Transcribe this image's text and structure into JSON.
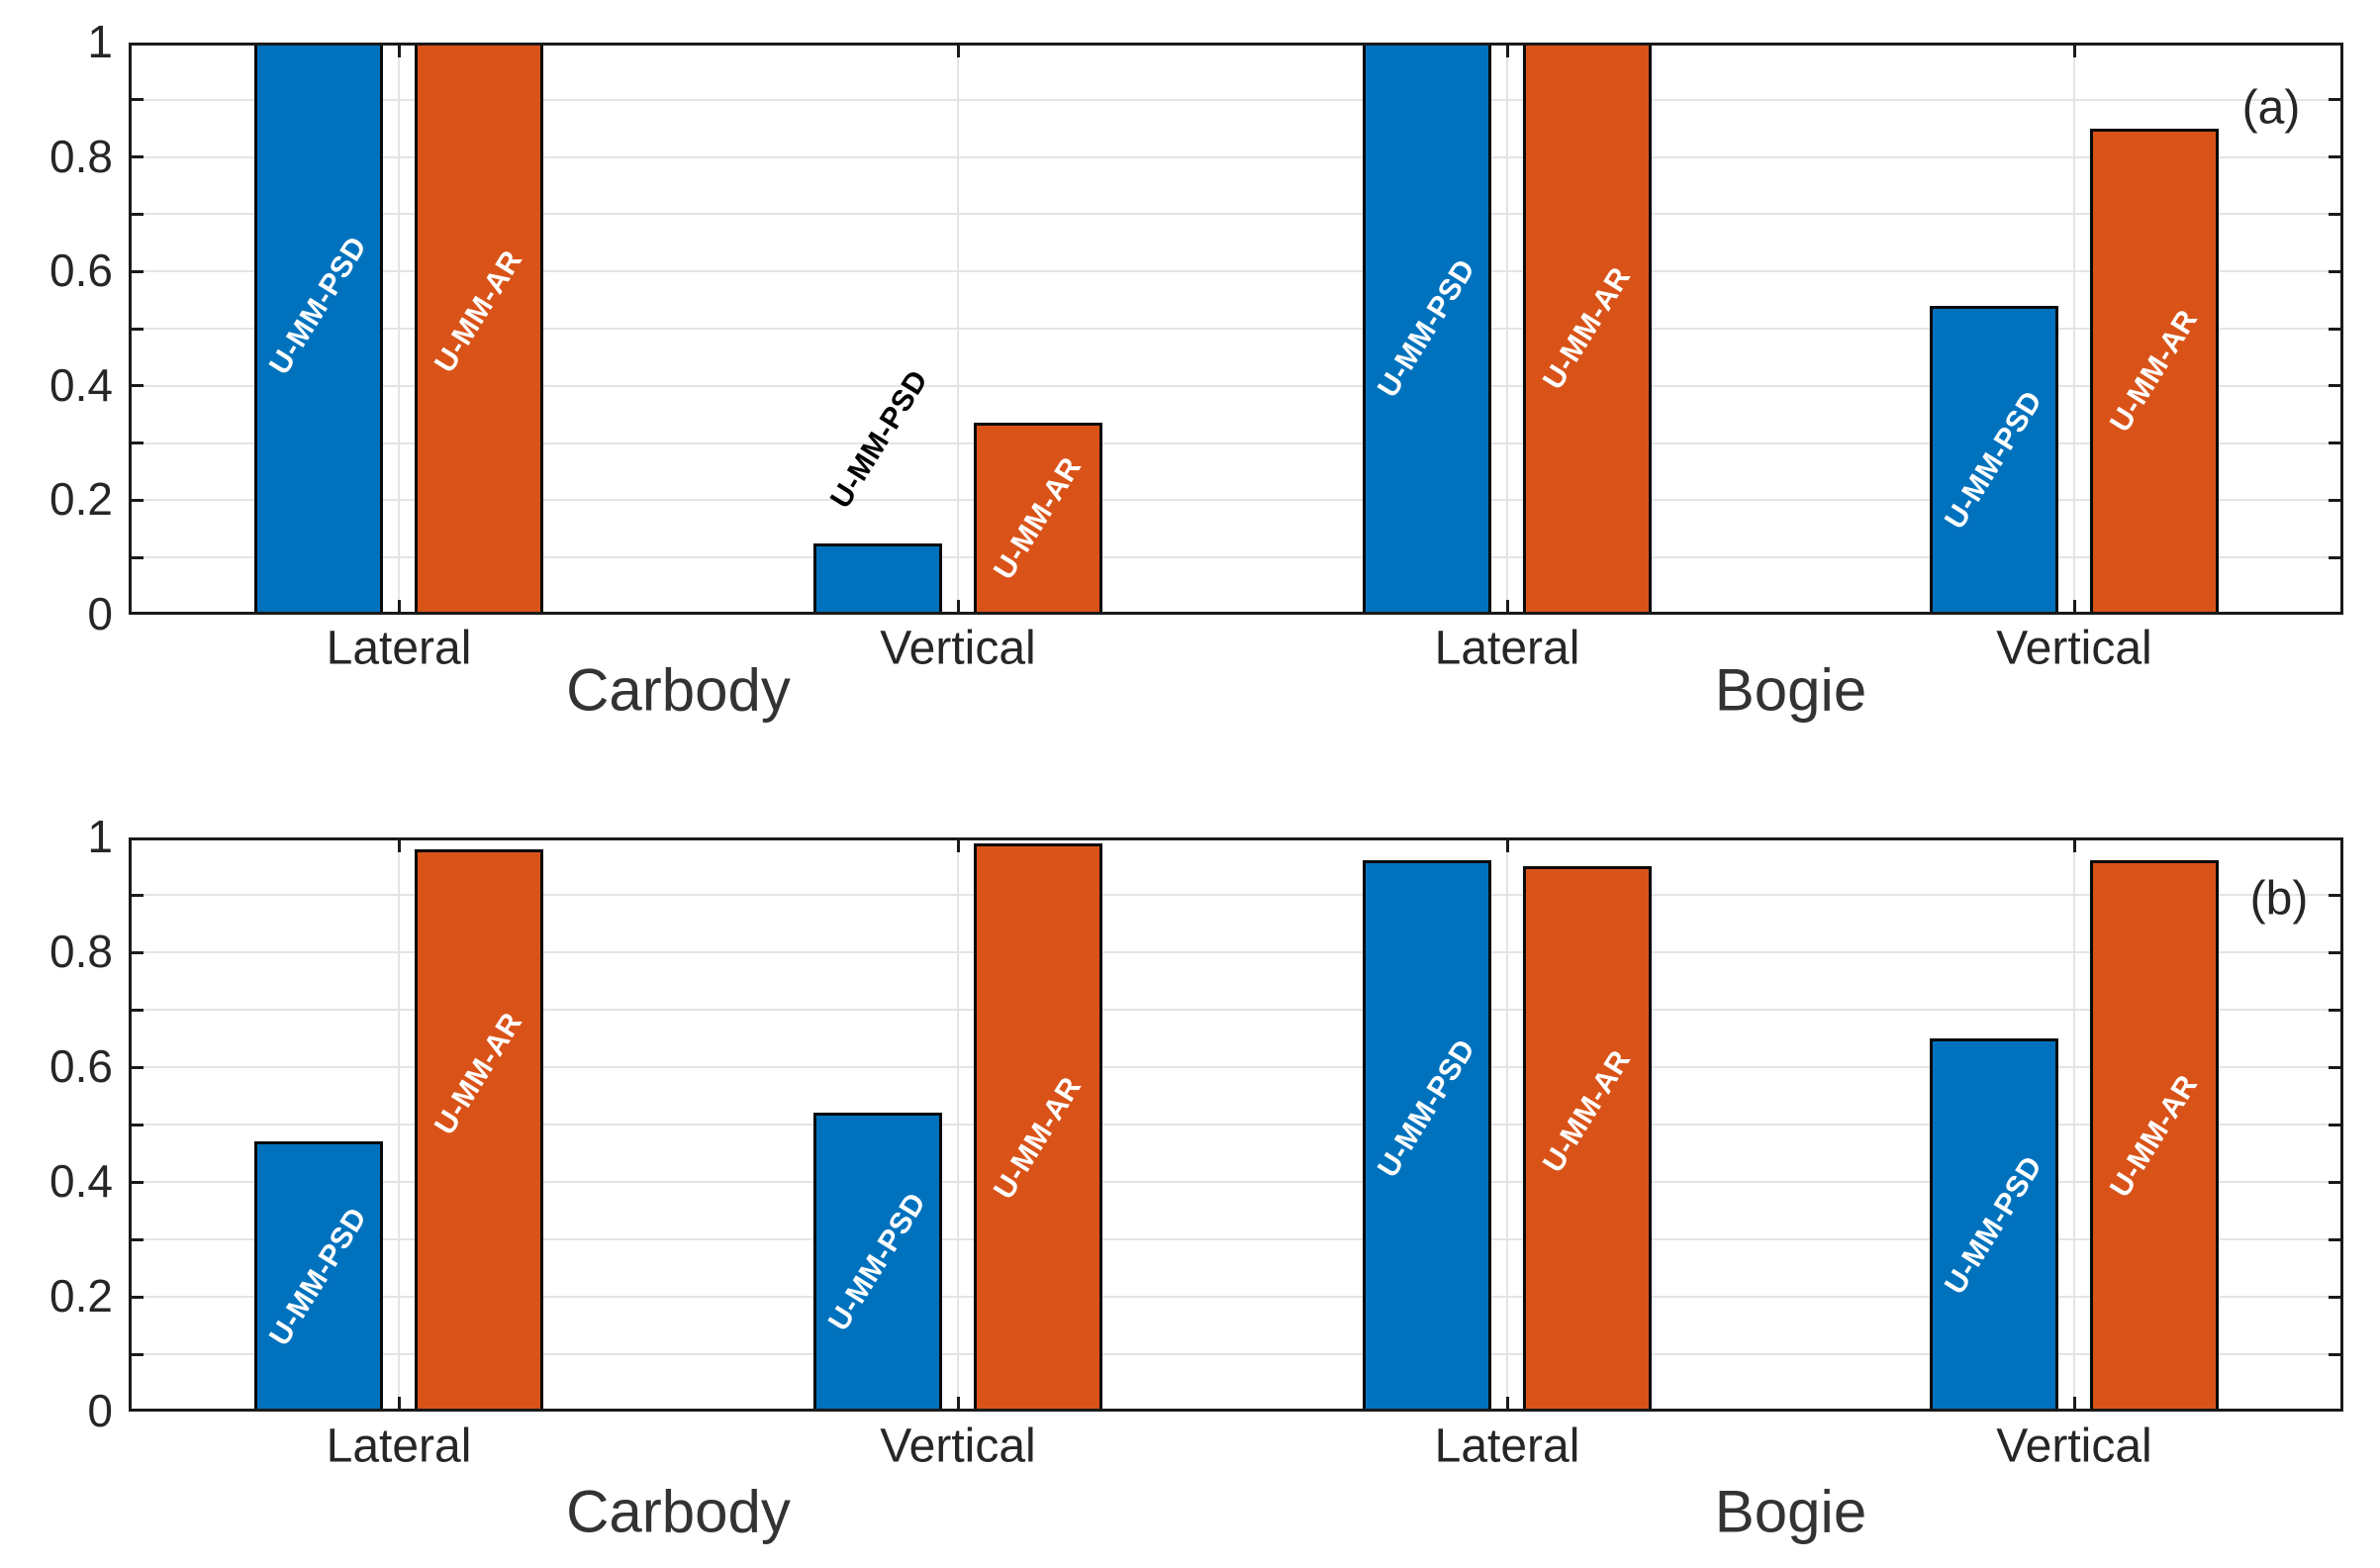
{
  "style": {
    "background": "#FFFFFF",
    "series_colors": {
      "U-MM-PSD": "#0072BD",
      "U-MM-AR": "#D95319"
    },
    "bar_edge_color": "#0A0A0A",
    "grid_color": "#E4E4E4",
    "axis_color": "#1A1A1A",
    "tick_text_color": "#262626",
    "section_text_color": "#333333",
    "bar_label_inside_color": "#FFFFFF",
    "bar_label_outside_color": "#000000"
  },
  "series_names": [
    "U-MM-PSD",
    "U-MM-AR"
  ],
  "chart_data": [
    {
      "type": "bar",
      "panel_tag": "(a)",
      "ylim": [
        0,
        1
      ],
      "ytick_labels": [
        "0",
        "0.2",
        "0.4",
        "0.6",
        "0.8",
        "1"
      ],
      "grid": true,
      "legend_position": "none",
      "sections": [
        {
          "label": "Carbody",
          "groups": [
            {
              "category": "Lateral",
              "bars": [
                {
                  "series": "U-MM-PSD",
                  "value": 1.0,
                  "label": "U-MM-PSD",
                  "label_inside": true,
                  "label_frac": 0.46
                },
                {
                  "series": "U-MM-AR",
                  "value": 1.0,
                  "label": "U-MM-AR",
                  "label_inside": true,
                  "label_frac": 0.47
                }
              ]
            },
            {
              "category": "Vertical",
              "bars": [
                {
                  "series": "U-MM-PSD",
                  "value": 0.125,
                  "label": "U-MM-PSD",
                  "label_inside": false,
                  "label_frac": 0.5
                },
                {
                  "series": "U-MM-AR",
                  "value": 0.335,
                  "label": "U-MM-AR",
                  "label_inside": true,
                  "label_frac": 0.5
                }
              ]
            }
          ]
        },
        {
          "label": "Bogie",
          "groups": [
            {
              "category": "Lateral",
              "bars": [
                {
                  "series": "U-MM-PSD",
                  "value": 1.0,
                  "label": "U-MM-PSD",
                  "label_inside": true,
                  "label_frac": 0.5
                },
                {
                  "series": "U-MM-AR",
                  "value": 1.0,
                  "label": "U-MM-AR",
                  "label_inside": true,
                  "label_frac": 0.5
                }
              ]
            },
            {
              "category": "Vertical",
              "bars": [
                {
                  "series": "U-MM-PSD",
                  "value": 0.54,
                  "label": "U-MM-PSD",
                  "label_inside": true,
                  "label_frac": 0.5
                },
                {
                  "series": "U-MM-AR",
                  "value": 0.85,
                  "label": "U-MM-AR",
                  "label_inside": true,
                  "label_frac": 0.5
                }
              ]
            }
          ]
        }
      ]
    },
    {
      "type": "bar",
      "panel_tag": "(b)",
      "ylim": [
        0,
        1
      ],
      "ytick_labels": [
        "0",
        "0.2",
        "0.4",
        "0.6",
        "0.8",
        "1"
      ],
      "grid": true,
      "legend_position": "none",
      "sections": [
        {
          "label": "Carbody",
          "groups": [
            {
              "category": "Lateral",
              "bars": [
                {
                  "series": "U-MM-PSD",
                  "value": 0.47,
                  "label": "U-MM-PSD",
                  "label_inside": true,
                  "label_frac": 0.5
                },
                {
                  "series": "U-MM-AR",
                  "value": 0.98,
                  "label": "U-MM-AR",
                  "label_inside": true,
                  "label_frac": 0.4
                }
              ]
            },
            {
              "category": "Vertical",
              "bars": [
                {
                  "series": "U-MM-PSD",
                  "value": 0.52,
                  "label": "U-MM-PSD",
                  "label_inside": true,
                  "label_frac": 0.5
                },
                {
                  "series": "U-MM-AR",
                  "value": 0.99,
                  "label": "U-MM-AR",
                  "label_inside": true,
                  "label_frac": 0.52
                }
              ]
            }
          ]
        },
        {
          "label": "Bogie",
          "groups": [
            {
              "category": "Lateral",
              "bars": [
                {
                  "series": "U-MM-PSD",
                  "value": 0.96,
                  "label": "U-MM-PSD",
                  "label_inside": true,
                  "label_frac": 0.45
                },
                {
                  "series": "U-MM-AR",
                  "value": 0.95,
                  "label": "U-MM-AR",
                  "label_inside": true,
                  "label_frac": 0.45
                }
              ]
            },
            {
              "category": "Vertical",
              "bars": [
                {
                  "series": "U-MM-PSD",
                  "value": 0.65,
                  "label": "U-MM-PSD",
                  "label_inside": true,
                  "label_frac": 0.5
                },
                {
                  "series": "U-MM-AR",
                  "value": 0.96,
                  "label": "U-MM-AR",
                  "label_inside": true,
                  "label_frac": 0.5
                }
              ]
            }
          ]
        }
      ]
    }
  ]
}
